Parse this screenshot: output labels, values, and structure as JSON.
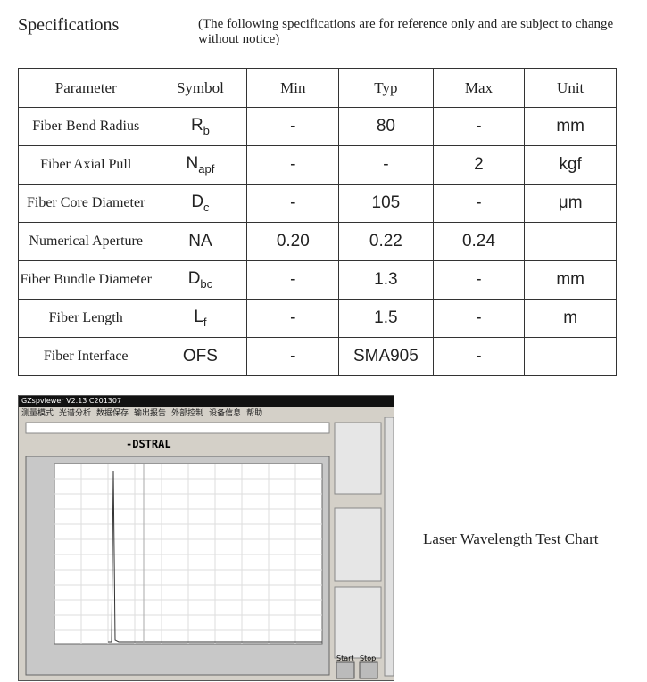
{
  "header": {
    "title": "Specifications",
    "note": "(The following specifications are for reference only and are subject to change without notice)"
  },
  "table": {
    "columns": [
      "Parameter",
      "Symbol",
      "Min",
      "Typ",
      "Max",
      "Unit"
    ],
    "rows": [
      [
        "Fiber Bend Radius",
        {
          "main": "R",
          "sub": "b"
        },
        "-",
        "80",
        "-",
        "mm"
      ],
      [
        "Fiber Axial Pull",
        {
          "main": "N",
          "sub": "apf"
        },
        "-",
        "-",
        "2",
        "kgf"
      ],
      [
        "Fiber Core Diameter",
        {
          "main": "D",
          "sub": "c"
        },
        "-",
        "105",
        "-",
        "μm"
      ],
      [
        "Numerical Aperture",
        "NA",
        "0.20",
        "0.22",
        "0.24",
        null
      ],
      [
        "Fiber Bundle Diameter",
        {
          "main": "D",
          "sub": "bc"
        },
        "-",
        "1.3",
        "-",
        "mm"
      ],
      [
        "Fiber Length",
        {
          "main": "L",
          "sub": "f"
        },
        "-",
        "1.5",
        "-",
        "m"
      ],
      [
        "Fiber Interface",
        "OFS",
        "-",
        "SMA905",
        "-",
        null
      ]
    ]
  },
  "screenshot": {
    "title": "GZspviewer V2.13 C201307",
    "menu": [
      "测量模式",
      "光谱分析",
      "数据保存",
      "输出报告",
      "外部控制",
      "设备信息",
      "帮助"
    ],
    "toolbar": "-DSTRAL",
    "buttons": [
      "Start",
      "Stop"
    ]
  },
  "caption": "Laser Wavelength Test Chart"
}
